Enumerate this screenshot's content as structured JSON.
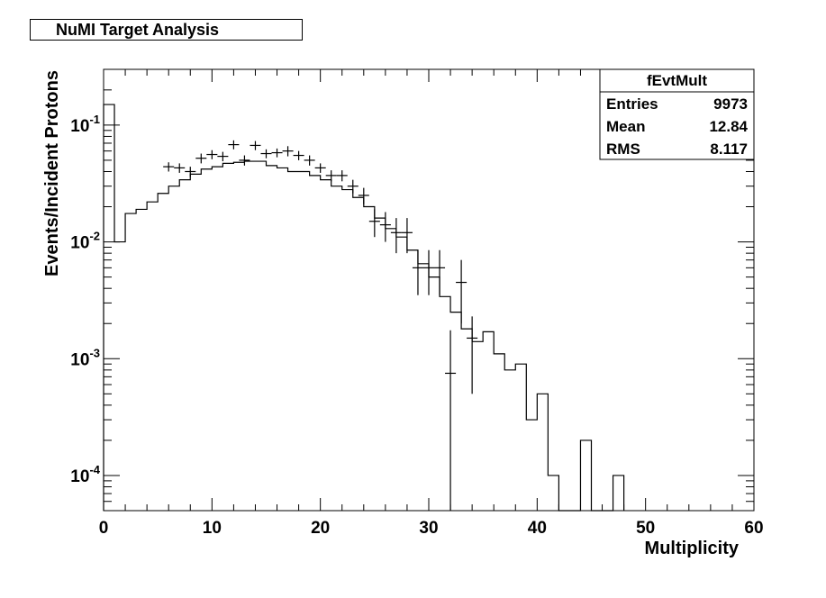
{
  "chart_data": {
    "type": "histogram",
    "title": "NuMI Target Analysis",
    "xlabel": "Multiplicity",
    "ylabel": "Events/Incident Protons",
    "xlim": [
      0,
      60
    ],
    "ylim": [
      5e-05,
      0.3
    ],
    "yscale": "log",
    "x_ticks": [
      "0",
      "10",
      "20",
      "30",
      "40",
      "50",
      "60"
    ],
    "y_ticks": [
      {
        "base": "10",
        "exp": "-1",
        "value": 0.1
      },
      {
        "base": "10",
        "exp": "-2",
        "value": 0.01
      },
      {
        "base": "10",
        "exp": "-3",
        "value": 0.001
      },
      {
        "base": "10",
        "exp": "-4",
        "value": 0.0001
      }
    ],
    "stats": {
      "name": "fEvtMult",
      "rows": [
        {
          "label": "Entries",
          "value": "9973"
        },
        {
          "label": "Mean",
          "value": "12.84"
        },
        {
          "label": "RMS",
          "value": "8.117"
        }
      ]
    },
    "histogram": {
      "bin_width": 1,
      "bin_low_edges": [
        0,
        1,
        2,
        3,
        4,
        5,
        6,
        7,
        8,
        9,
        10,
        11,
        12,
        13,
        14,
        15,
        16,
        17,
        18,
        19,
        20,
        21,
        22,
        23,
        24,
        25,
        26,
        27,
        28,
        29,
        30,
        31,
        32,
        33,
        34,
        35,
        36,
        37,
        38,
        39,
        40,
        41,
        42,
        43,
        44,
        45,
        46,
        47
      ],
      "values": [
        0.15,
        0.01,
        0.0175,
        0.019,
        0.022,
        0.026,
        0.03,
        0.034,
        0.038,
        0.042,
        0.044,
        0.047,
        0.048,
        0.049,
        0.049,
        0.045,
        0.043,
        0.04,
        0.04,
        0.037,
        0.034,
        0.03,
        0.028,
        0.024,
        0.02,
        0.016,
        0.013,
        0.011,
        0.0085,
        0.0065,
        0.005,
        0.0034,
        0.0025,
        0.0018,
        0.0014,
        0.0017,
        0.0011,
        0.0008,
        0.0009,
        0.0003,
        0.0005,
        0.0001,
        4e-05,
        4e-05,
        0.0002,
        4e-05,
        4e-05,
        0.0001
      ]
    },
    "points": {
      "x": [
        6,
        7,
        8,
        9,
        10,
        11,
        12,
        13,
        14,
        15,
        16,
        17,
        18,
        19,
        20,
        21,
        22,
        23,
        24,
        25,
        26,
        27,
        28,
        29,
        30,
        31,
        33,
        34
      ],
      "y": [
        0.044,
        0.043,
        0.04,
        0.052,
        0.056,
        0.054,
        0.068,
        0.05,
        0.067,
        0.057,
        0.058,
        0.06,
        0.055,
        0.05,
        0.043,
        0.037,
        0.037,
        0.03,
        0.025,
        0.015,
        0.014,
        0.012,
        0.012,
        0.006,
        0.006,
        0.006,
        0.0045,
        0.0015
      ],
      "yerr_low": [
        0.004,
        0.004,
        0.004,
        0.005,
        0.005,
        0.005,
        0.006,
        0.005,
        0.006,
        0.005,
        0.005,
        0.006,
        0.005,
        0.005,
        0.004,
        0.004,
        0.004,
        0.004,
        0.004,
        0.004,
        0.004,
        0.004,
        0.004,
        0.0025,
        0.0025,
        0.0025,
        0.0025,
        0.001
      ],
      "yerr_high": [
        0.004,
        0.004,
        0.004,
        0.005,
        0.005,
        0.005,
        0.006,
        0.005,
        0.006,
        0.005,
        0.005,
        0.006,
        0.005,
        0.005,
        0.004,
        0.004,
        0.004,
        0.004,
        0.004,
        0.004,
        0.004,
        0.004,
        0.004,
        0.0025,
        0.0025,
        0.0025,
        0.0025,
        0.0008
      ]
    },
    "outlier_point": {
      "x": 32,
      "y": 0.00075,
      "yerr_low": 0.0007,
      "yerr_high": 0.001
    },
    "grid": false,
    "stats_box_placement": "top-right"
  }
}
